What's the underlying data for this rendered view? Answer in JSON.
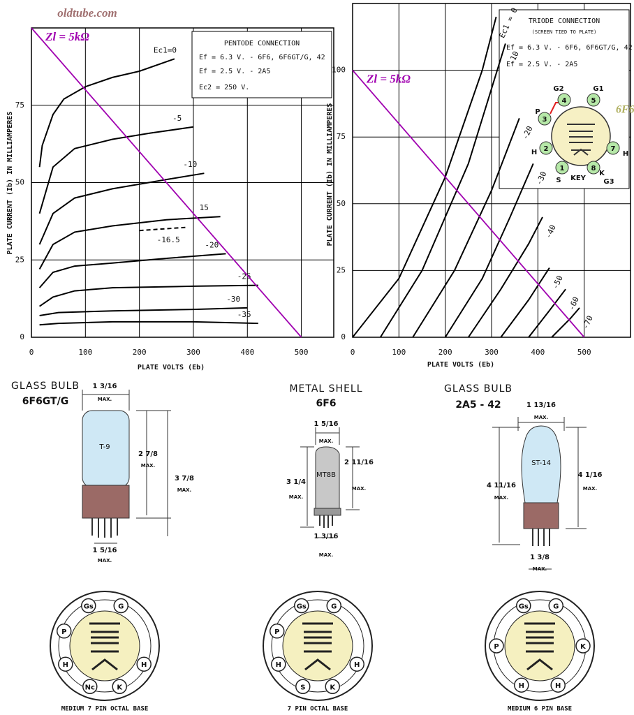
{
  "watermark": "oldtube.com",
  "chart_data": [
    {
      "type": "line",
      "x_label": "PLATE VOLTS (Eb)",
      "y_label": "PLATE CURRENT (Ib) IN MILLIAMPERES",
      "xlim": [
        0,
        560
      ],
      "ylim": [
        0,
        100
      ],
      "xticks": [
        0,
        100,
        200,
        300,
        400,
        500
      ],
      "yticks": [
        0,
        25,
        50,
        75
      ],
      "grid": true,
      "info": [
        "PENTODE CONNECTION",
        "Ef = 6.3 V. - 6F6, 6F6GT/G, 42",
        "Ef = 2.5 V. - 2A5",
        "Ec2 = 250 V."
      ],
      "series": [
        {
          "name": "Ec1=0",
          "color": "#000000",
          "x": [
            15,
            20,
            40,
            60,
            100,
            150,
            200,
            265
          ],
          "values": [
            55,
            62,
            72,
            77,
            81,
            84,
            86,
            90
          ]
        },
        {
          "name": "-5",
          "color": "#000000",
          "x": [
            15,
            40,
            80,
            150,
            220,
            300
          ],
          "values": [
            40,
            55,
            61,
            64,
            66,
            68
          ]
        },
        {
          "name": "-10",
          "color": "#000000",
          "x": [
            15,
            40,
            80,
            150,
            250,
            320
          ],
          "values": [
            30,
            40,
            45,
            48,
            51,
            53
          ]
        },
        {
          "name": "15",
          "color": "#000000",
          "x": [
            15,
            40,
            80,
            150,
            250,
            350
          ],
          "values": [
            22,
            30,
            34,
            36,
            38,
            39
          ]
        },
        {
          "name": "-16.5",
          "color": "#000000",
          "style": "dashed",
          "x": [
            200,
            285
          ],
          "values": [
            34.5,
            35.5
          ]
        },
        {
          "name": "-20",
          "color": "#000000",
          "x": [
            15,
            40,
            80,
            150,
            250,
            360
          ],
          "values": [
            16,
            21,
            23,
            24,
            25.5,
            27
          ]
        },
        {
          "name": "-25",
          "color": "#000000",
          "x": [
            15,
            40,
            80,
            150,
            300,
            420
          ],
          "values": [
            10,
            13,
            15,
            16,
            16.5,
            16.8
          ]
        },
        {
          "name": "-30",
          "color": "#000000",
          "x": [
            15,
            50,
            150,
            300,
            400
          ],
          "values": [
            7,
            8,
            8.5,
            9,
            9.5
          ]
        },
        {
          "name": "-35",
          "color": "#000000",
          "x": [
            15,
            50,
            150,
            300,
            420
          ],
          "values": [
            4,
            4.5,
            5,
            5,
            4.5
          ]
        },
        {
          "name": "Zl = 5kΩ",
          "color": "#a000b0",
          "load_line": true,
          "x": [
            0,
            500
          ],
          "values": [
            100,
            0
          ]
        }
      ]
    },
    {
      "type": "line",
      "x_label": "PLATE VOLTS (Eb)",
      "y_label": "PLATE CURRENT (Ib) IN MILLIAMPERES",
      "xlim": [
        0,
        600
      ],
      "ylim": [
        0,
        125
      ],
      "xticks": [
        0,
        100,
        200,
        300,
        400,
        500
      ],
      "yticks": [
        0,
        25,
        50,
        75,
        100
      ],
      "grid": true,
      "info": [
        "TRIODE CONNECTION",
        "(SCREEN TIED TO PLATE)",
        "Ef = 6.3 V. - 6F6, 6F6GT/G, 42",
        "Ef = 2.5 V. - 2A5"
      ],
      "series": [
        {
          "name": "Ec1 = 0",
          "color": "#000000",
          "x": [
            0,
            100,
            200,
            280,
            310
          ],
          "values": [
            0,
            22,
            60,
            100,
            120
          ]
        },
        {
          "name": "-10",
          "color": "#000000",
          "x": [
            60,
            150,
            250,
            330
          ],
          "values": [
            0,
            25,
            65,
            110
          ]
        },
        {
          "name": "-20",
          "color": "#000000",
          "x": [
            130,
            220,
            300,
            360
          ],
          "values": [
            0,
            25,
            55,
            82
          ]
        },
        {
          "name": "-30",
          "color": "#000000",
          "x": [
            200,
            280,
            340,
            390
          ],
          "values": [
            0,
            22,
            45,
            65
          ]
        },
        {
          "name": "-40",
          "color": "#000000",
          "x": [
            250,
            320,
            380,
            410
          ],
          "values": [
            0,
            18,
            35,
            45
          ]
        },
        {
          "name": "-50",
          "color": "#000000",
          "x": [
            320,
            380,
            425
          ],
          "values": [
            0,
            14,
            26
          ]
        },
        {
          "name": "-60",
          "color": "#000000",
          "x": [
            380,
            425,
            460
          ],
          "values": [
            0,
            10,
            18
          ]
        },
        {
          "name": "-70",
          "color": "#000000",
          "x": [
            430,
            470,
            490
          ],
          "values": [
            0,
            7,
            11
          ]
        },
        {
          "name": "Zl = 5kΩ",
          "color": "#a000b0",
          "load_line": true,
          "x": [
            0,
            500
          ],
          "values": [
            100,
            0
          ]
        }
      ]
    }
  ],
  "pin_diagram": {
    "name": "6F6",
    "key": "KEY",
    "pins": [
      {
        "number": 1,
        "labels": [
          "S"
        ]
      },
      {
        "number": 2,
        "labels": [
          "H"
        ]
      },
      {
        "number": 3,
        "labels": [
          "P"
        ]
      },
      {
        "number": 4,
        "labels": [
          "G2"
        ]
      },
      {
        "number": 5,
        "labels": [
          "G1"
        ]
      },
      {
        "number": 7,
        "labels": [
          "H"
        ]
      },
      {
        "number": 8,
        "labels": [
          "K",
          "G3"
        ]
      }
    ]
  },
  "max_label": "MAX.",
  "tubes": [
    {
      "envelope": "GLASS BULB",
      "name": "6F6GT/G",
      "bulb": "T-9",
      "diameter": "1 3/16",
      "bulb_height": "2 7/8",
      "overall_height": "3 7/8",
      "pin_circle": "1 5/16",
      "base": "MEDIUM 7 PIN OCTAL BASE",
      "pins": [
        "Gs",
        "G",
        "P",
        "H",
        "H",
        "Nc",
        "K"
      ]
    },
    {
      "envelope": "METAL SHELL",
      "name": "6F6",
      "bulb": "MT8B",
      "diameter": "1 5/16",
      "bulb_height": "2 11/16",
      "overall_height": "3 1/4",
      "pin_circle": "1 3/16",
      "base": "7 PIN OCTAL BASE",
      "pins": [
        "Gs",
        "G",
        "P",
        "H",
        "H",
        "S",
        "K"
      ]
    },
    {
      "envelope": "GLASS BULB",
      "name": "2A5 - 42",
      "bulb": "ST-14",
      "diameter": "1 13/16",
      "bulb_height": "4 1/16",
      "overall_height": "4 11/16",
      "pin_circle": "1 3/8",
      "base": "MEDIUM 6 PIN BASE",
      "pins": [
        "Gs",
        "G",
        "P",
        "K",
        "H",
        "H"
      ]
    }
  ]
}
